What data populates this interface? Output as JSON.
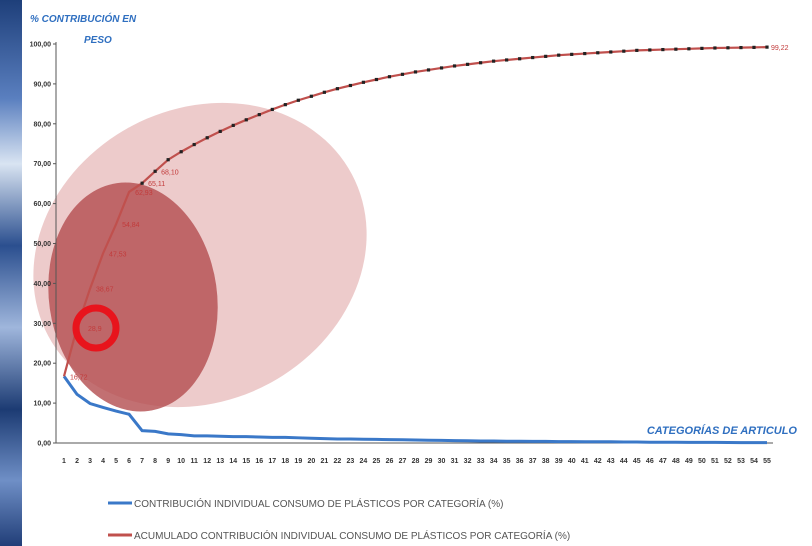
{
  "chart_data": {
    "type": "line",
    "ylabel_lines": [
      "% CONTRIBUCIÓN EN",
      "PESO"
    ],
    "xlabel": "CATEGORÍAS DE ARTICULO",
    "yticks": [
      "0,00",
      "10,00",
      "20,00",
      "30,00",
      "40,00",
      "50,00",
      "60,00",
      "70,00",
      "80,00",
      "90,00",
      "100,00"
    ],
    "ylim": [
      0,
      100
    ],
    "x": [
      1,
      2,
      3,
      4,
      5,
      6,
      7,
      8,
      9,
      10,
      11,
      12,
      13,
      14,
      15,
      16,
      17,
      18,
      19,
      20,
      21,
      22,
      23,
      24,
      25,
      26,
      27,
      28,
      29,
      30,
      31,
      32,
      33,
      34,
      35,
      36,
      37,
      38,
      39,
      40,
      41,
      42,
      43,
      44,
      45,
      46,
      47,
      48,
      49,
      50,
      51,
      52,
      53,
      54,
      55
    ],
    "grid": false,
    "legend_position": "bottom",
    "series": [
      {
        "name": "CONTRIBUCIÓN INDIVIDUAL CONSUMO DE PLÁSTICOS POR CATEGORÍA (%)",
        "color": "#3a78c8",
        "values": [
          16.72,
          12.2,
          9.9,
          8.9,
          8.0,
          7.2,
          3.1,
          2.9,
          2.3,
          2.1,
          1.8,
          1.8,
          1.7,
          1.6,
          1.6,
          1.5,
          1.4,
          1.4,
          1.3,
          1.2,
          1.1,
          1.0,
          1.0,
          0.95,
          0.9,
          0.85,
          0.8,
          0.75,
          0.7,
          0.65,
          0.6,
          0.55,
          0.5,
          0.5,
          0.45,
          0.45,
          0.4,
          0.4,
          0.35,
          0.35,
          0.3,
          0.3,
          0.3,
          0.25,
          0.25,
          0.2,
          0.2,
          0.2,
          0.15,
          0.15,
          0.15,
          0.12,
          0.1,
          0.1,
          0.1
        ]
      },
      {
        "name": "ACUMULADO CONTRIBUCIÓN INDIVIDUAL CONSUMO DE PLÁSTICOS POR CATEGORÍA (%)",
        "color": "#c0504d",
        "values": [
          16.72,
          28.9,
          38.67,
          47.53,
          54.84,
          62.93,
          65.11,
          68.1,
          71.0,
          73.0,
          74.8,
          76.5,
          78.1,
          79.6,
          81.0,
          82.3,
          83.6,
          84.8,
          85.9,
          86.9,
          87.9,
          88.8,
          89.6,
          90.4,
          91.1,
          91.8,
          92.4,
          93.0,
          93.5,
          94.0,
          94.5,
          94.9,
          95.3,
          95.7,
          96.0,
          96.3,
          96.6,
          96.9,
          97.2,
          97.4,
          97.6,
          97.8,
          98.0,
          98.2,
          98.4,
          98.5,
          98.6,
          98.7,
          98.8,
          98.9,
          99.0,
          99.05,
          99.1,
          99.15,
          99.22
        ]
      }
    ],
    "data_labels": [
      {
        "x": 1,
        "y": 16.72,
        "text": "16,72"
      },
      {
        "x": 2,
        "y": 28.9,
        "text": "28,9"
      },
      {
        "x": 3,
        "y": 38.67,
        "text": "38,67"
      },
      {
        "x": 4,
        "y": 47.53,
        "text": "47,53"
      },
      {
        "x": 5,
        "y": 54.84,
        "text": "54,84"
      },
      {
        "x": 6,
        "y": 62.93,
        "text": "62,93"
      },
      {
        "x": 7,
        "y": 65.11,
        "text": "65,11"
      },
      {
        "x": 8,
        "y": 68.1,
        "text": "68,10"
      },
      {
        "x": 55,
        "y": 99.22,
        "text": "99,22"
      }
    ],
    "highlight_label": "28,9"
  }
}
